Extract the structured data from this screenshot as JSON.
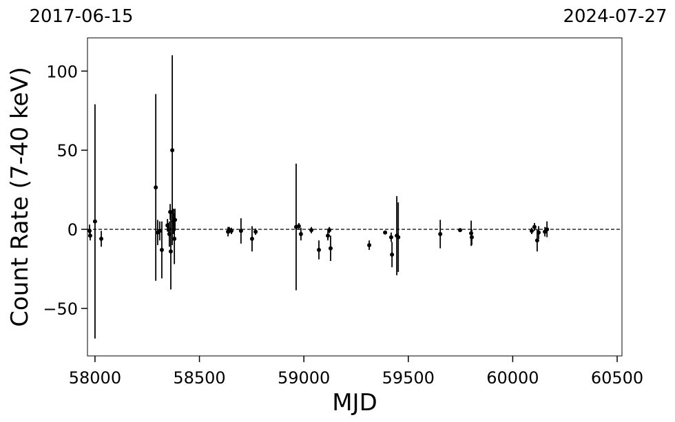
{
  "chart_data": {
    "type": "errorbar",
    "xlabel": "MJD",
    "ylabel": "Count Rate (7-40 keV)",
    "top_left_label": "2017-06-15",
    "top_right_label": "2024-07-27",
    "xlim": [
      57964,
      60523
    ],
    "ylim": [
      -80,
      121
    ],
    "xticks": [
      58000,
      58500,
      59000,
      59500,
      60000,
      60500
    ],
    "yticks": [
      {
        "value": -50,
        "label": "−50"
      },
      0,
      50,
      100
    ],
    "hline": 0,
    "color": "#000000",
    "x": [
      57974,
      57977,
      58000,
      58030,
      58291,
      58300,
      58310,
      58320,
      58347,
      58353,
      58356,
      58360,
      58363,
      58370,
      58376,
      58380,
      58383,
      58637,
      58643,
      58653,
      58699,
      58752,
      58769,
      58963,
      58976,
      58986,
      59036,
      59072,
      59115,
      59122,
      59128,
      59313,
      59389,
      59418,
      59422,
      59445,
      59452,
      59653,
      59748,
      59801,
      59804,
      60091,
      60104,
      60117,
      60124,
      60154,
      60164
    ],
    "values": [
      -1,
      -4,
      5,
      -6,
      26.5,
      -2,
      -1,
      -13,
      2.5,
      0,
      -3,
      11,
      -14,
      50,
      5,
      -6,
      6,
      -1.5,
      -0.5,
      -1,
      -1,
      -6,
      -1.5,
      1.5,
      2,
      -3,
      -0.5,
      -13,
      -4,
      -0.5,
      -12,
      -10,
      -2,
      -5,
      -16,
      -4,
      -5,
      -3,
      -0.5,
      -2.5,
      -5,
      -1,
      1.5,
      -7,
      -2,
      -1.5,
      0
    ],
    "errors": [
      4,
      3,
      74,
      5,
      59,
      8,
      6,
      18,
      4,
      4,
      8,
      5,
      24,
      60,
      8,
      16,
      7,
      3,
      2,
      2,
      8,
      8,
      2,
      40,
      2,
      4,
      2,
      6,
      3,
      2,
      8,
      3,
      1,
      3,
      8,
      25,
      22,
      9,
      1,
      8,
      5,
      2,
      2.5,
      7,
      4,
      3,
      5
    ]
  }
}
